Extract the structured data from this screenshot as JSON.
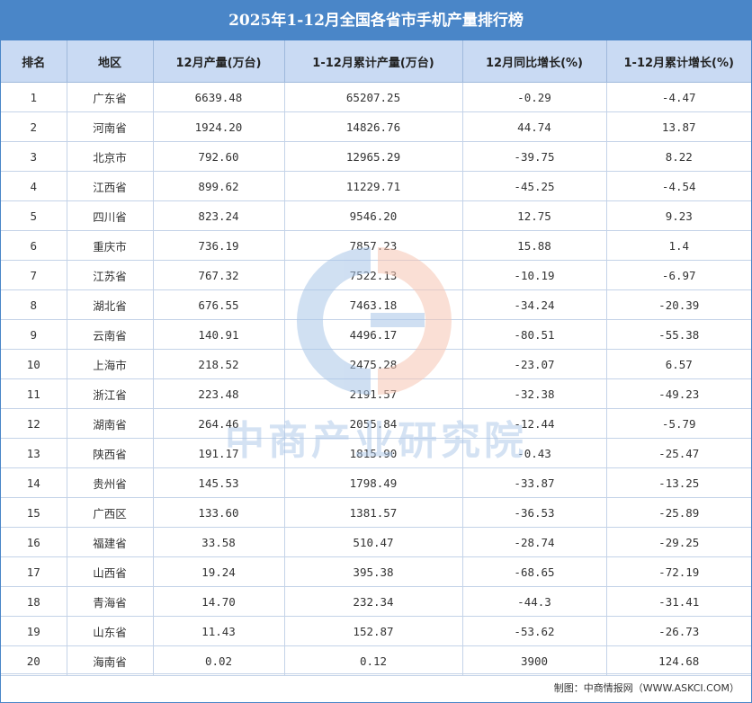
{
  "title": "2025年1-12月全国各省市手机产量排行榜",
  "columns": [
    "排名",
    "地区",
    "12月产量(万台)",
    "1-12月累计产量(万台)",
    "12月同比增长(%)",
    "1-12月累计增长(%)"
  ],
  "chart_data": {
    "type": "table",
    "title": "2025年1-12月全国各省市手机产量排行榜",
    "rows": [
      [
        "1",
        "广东省",
        "6639.48",
        "65207.25",
        "-0.29",
        "-4.47"
      ],
      [
        "2",
        "河南省",
        "1924.20",
        "14826.76",
        "44.74",
        "13.87"
      ],
      [
        "3",
        "北京市",
        "792.60",
        "12965.29",
        "-39.75",
        "8.22"
      ],
      [
        "4",
        "江西省",
        "899.62",
        "11229.71",
        "-45.25",
        "-4.54"
      ],
      [
        "5",
        "四川省",
        "823.24",
        "9546.20",
        "12.75",
        "9.23"
      ],
      [
        "6",
        "重庆市",
        "736.19",
        "7857.23",
        "15.88",
        "1.4"
      ],
      [
        "7",
        "江苏省",
        "767.32",
        "7522.13",
        "-10.19",
        "-6.97"
      ],
      [
        "8",
        "湖北省",
        "676.55",
        "7463.18",
        "-34.24",
        "-20.39"
      ],
      [
        "9",
        "云南省",
        "140.91",
        "4496.17",
        "-80.51",
        "-55.38"
      ],
      [
        "10",
        "上海市",
        "218.52",
        "2475.28",
        "-23.07",
        "6.57"
      ],
      [
        "11",
        "浙江省",
        "223.48",
        "2191.57",
        "-32.38",
        "-49.23"
      ],
      [
        "12",
        "湖南省",
        "264.46",
        "2055.84",
        "-12.44",
        "-5.79"
      ],
      [
        "13",
        "陕西省",
        "191.17",
        "1815.90",
        "-0.43",
        "-25.47"
      ],
      [
        "14",
        "贵州省",
        "145.53",
        "1798.49",
        "-33.87",
        "-13.25"
      ],
      [
        "15",
        "广西区",
        "133.60",
        "1381.57",
        "-36.53",
        "-25.89"
      ],
      [
        "16",
        "福建省",
        "33.58",
        "510.47",
        "-28.74",
        "-29.25"
      ],
      [
        "17",
        "山西省",
        "19.24",
        "395.38",
        "-68.65",
        "-72.19"
      ],
      [
        "18",
        "青海省",
        "14.70",
        "232.34",
        "-44.3",
        "-31.41"
      ],
      [
        "19",
        "山东省",
        "11.43",
        "152.87",
        "-53.62",
        "-26.73"
      ],
      [
        "20",
        "海南省",
        "0.02",
        "0.12",
        "3900",
        "124.68"
      ]
    ]
  },
  "watermark": {
    "text": "中商产业研究院",
    "colors": {
      "blue": "#a9c6e8",
      "orange": "#f7c6b3"
    }
  },
  "footer": "制图：中商情报网（WWW.ASKCI.COM）",
  "colors": {
    "header_bg": "#4a86c8",
    "col_header_bg": "#c9daf3",
    "border": "#c4d3e8"
  }
}
